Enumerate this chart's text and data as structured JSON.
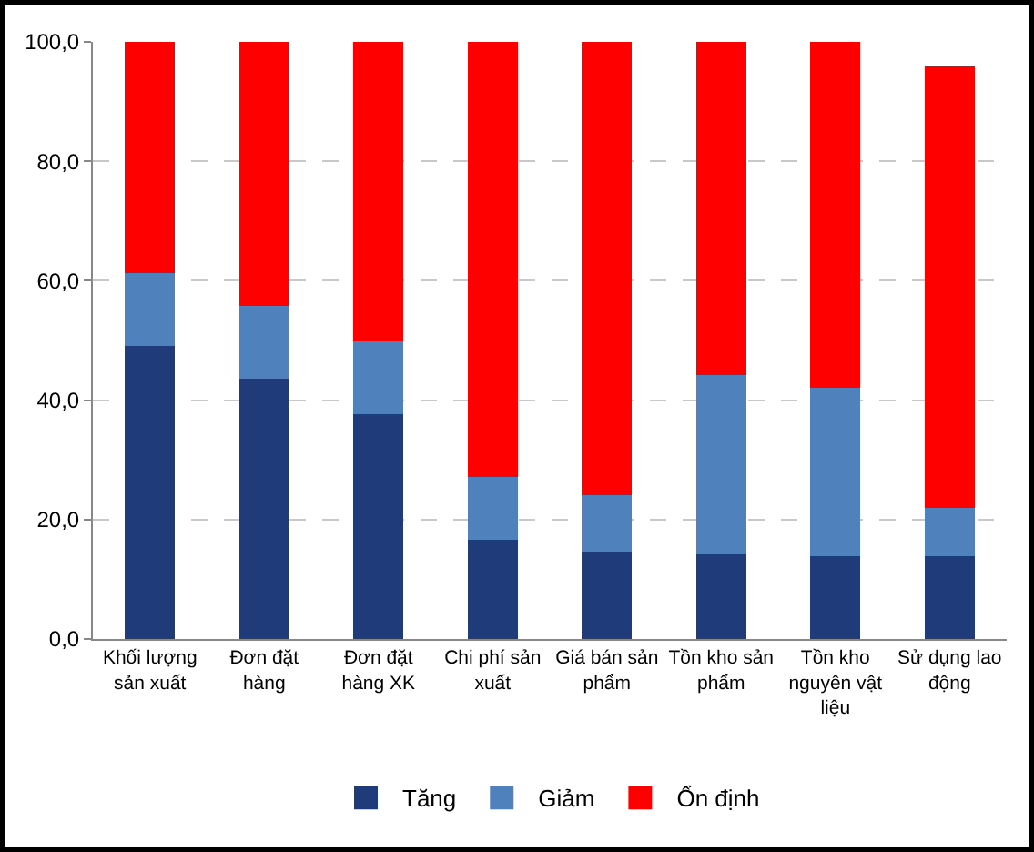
{
  "chart_data": {
    "type": "bar",
    "stacked": true,
    "categories": [
      "Khối lượng sản xuất",
      "Đơn đặt hàng",
      "Đơn đặt hàng XK",
      "Chi phí sản xuất",
      "Giá bán sản phẩm",
      "Tồn kho sản phẩm",
      "Tồn kho nguyên vật liệu",
      "Sử dụng lao động"
    ],
    "series": [
      {
        "name": "Tăng",
        "color": "#1f3b7a",
        "values": [
          49.2,
          43.8,
          37.8,
          16.7,
          14.8,
          14.3,
          14.0,
          14.0
        ]
      },
      {
        "name": "Giảm",
        "color": "#4f81bd",
        "values": [
          12.3,
          12.1,
          12.2,
          10.6,
          9.4,
          30.0,
          28.2,
          8.1
        ]
      },
      {
        "name": "Ổn định",
        "color": "#ff0000",
        "values": [
          38.5,
          44.1,
          50.0,
          72.7,
          75.8,
          55.7,
          57.8,
          73.7
        ]
      }
    ],
    "ylim": [
      0,
      100
    ],
    "yticks": [
      {
        "value": 0,
        "label": "0,0"
      },
      {
        "value": 20,
        "label": "20,0"
      },
      {
        "value": 40,
        "label": "40,0"
      },
      {
        "value": 60,
        "label": "60,0"
      },
      {
        "value": 80,
        "label": "80,0"
      },
      {
        "value": 100,
        "label": "100,0"
      }
    ],
    "grid": "y",
    "legend": "bottom"
  }
}
